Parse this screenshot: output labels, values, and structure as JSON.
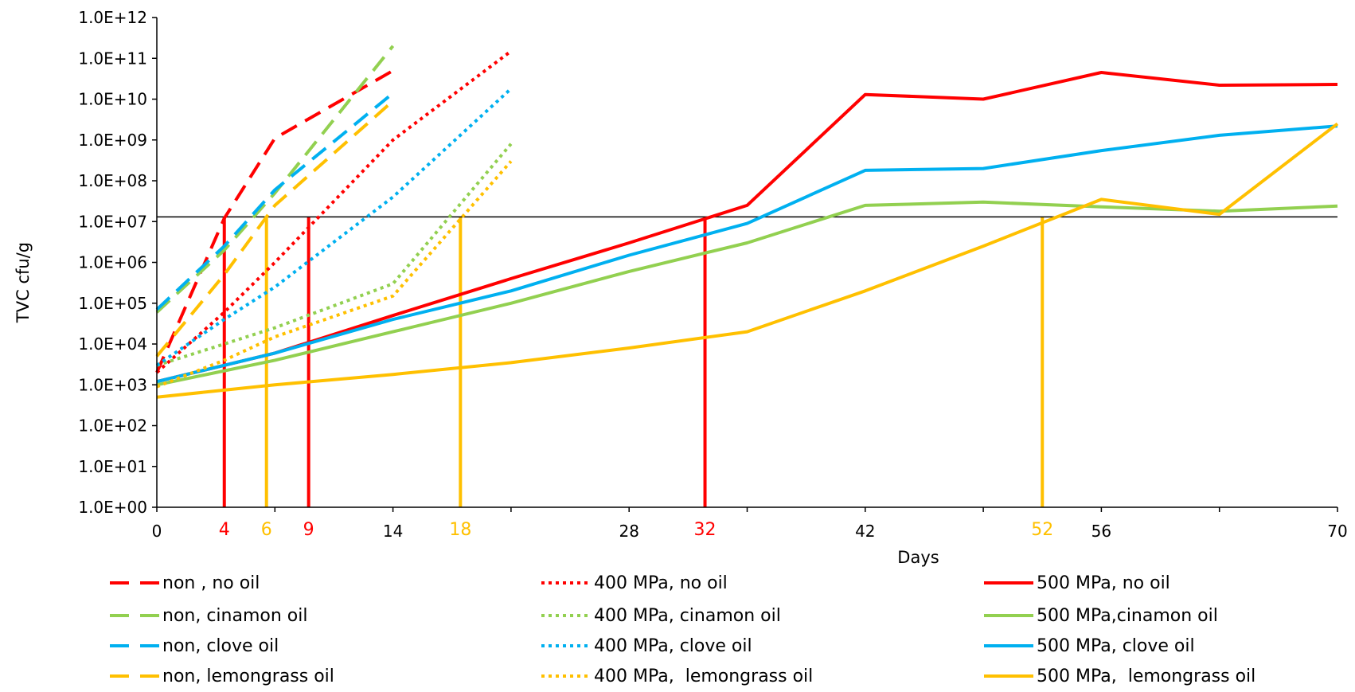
{
  "chart_data": {
    "type": "line",
    "title": "",
    "xlabel": "Days",
    "ylabel": "TVC  cfu/g",
    "y_scale": "log",
    "xlim": [
      0,
      70
    ],
    "ylim": [
      1,
      1000000000000
    ],
    "x_ticks": [
      0,
      14,
      28,
      42,
      56,
      70
    ],
    "y_ticks": [
      "1.0E+00",
      "1.0E+01",
      "1.0E+02",
      "1.0E+03",
      "1.0E+04",
      "1.0E+05",
      "1.0E+06",
      "1.0E+07",
      "1.0E+08",
      "1.0E+09",
      "1.0E+10",
      "1.0E+11",
      "1.0E+12"
    ],
    "y_tick_values": [
      1,
      10,
      100,
      1000,
      10000,
      100000,
      1000000,
      10000000,
      100000000,
      1000000000,
      10000000000,
      100000000000,
      1000000000000
    ],
    "grid": false,
    "legend_position": "bottom",
    "threshold": {
      "y": 13000000,
      "color": "#000000"
    },
    "markers": [
      {
        "x": 4,
        "label": "4",
        "color": "#ff0000"
      },
      {
        "x": 6.5,
        "label": "6",
        "color": "#ffc000"
      },
      {
        "x": 9,
        "label": "9",
        "color": "#ff0000"
      },
      {
        "x": 18,
        "label": "18",
        "color": "#ffc000"
      },
      {
        "x": 32.5,
        "label": "32",
        "color": "#ff0000"
      },
      {
        "x": 52.5,
        "label": "52",
        "color": "#ffc000"
      }
    ],
    "series": [
      {
        "name": "non , no oil",
        "color": "#ff0000",
        "style": "dashed",
        "x": [
          0,
          4,
          7,
          14
        ],
        "y": [
          2000,
          12000000,
          1100000000,
          50000000000
        ]
      },
      {
        "name": "400 MPa, no oil",
        "color": "#ff0000",
        "style": "dotted",
        "x": [
          0,
          4,
          7,
          14,
          21
        ],
        "y": [
          2000,
          60000,
          1000000,
          1000000000,
          150000000000
        ]
      },
      {
        "name": "500 MPa, no oil",
        "color": "#ff0000",
        "style": "solid",
        "x": [
          0,
          7,
          14,
          21,
          28,
          35,
          42,
          49,
          56,
          63,
          70
        ],
        "y": [
          1200,
          6000,
          50000,
          400000,
          3000000,
          25000000,
          13000000000,
          10000000000,
          45000000000,
          22000000000,
          23000000000
        ]
      },
      {
        "name": "non, cinamon oil",
        "color": "#92d050",
        "style": "dashed",
        "x": [
          0,
          4,
          7,
          14
        ],
        "y": [
          60000,
          2000000,
          50000000,
          200000000000
        ]
      },
      {
        "name": "400 MPa, cinamon oil",
        "color": "#92d050",
        "style": "dotted",
        "x": [
          0,
          4,
          7,
          14,
          21
        ],
        "y": [
          3000,
          10000,
          25000,
          300000,
          800000000
        ]
      },
      {
        "name": "500 MPa,cinamon oil",
        "color": "#92d050",
        "style": "solid",
        "x": [
          0,
          7,
          14,
          21,
          28,
          35,
          42,
          49,
          56,
          63,
          70
        ],
        "y": [
          1000,
          4000,
          20000,
          100000,
          600000,
          3000000,
          25000000,
          30000000,
          23000000,
          18000000,
          24000000
        ]
      },
      {
        "name": "non, clove oil",
        "color": "#00b0f0",
        "style": "dashed",
        "x": [
          0,
          4,
          7,
          14
        ],
        "y": [
          70000,
          2500000,
          60000000,
          14000000000
        ]
      },
      {
        "name": "400 MPa, clove oil",
        "color": "#00b0f0",
        "style": "dotted",
        "x": [
          0,
          4,
          7,
          14,
          21
        ],
        "y": [
          3000,
          40000,
          250000,
          40000000,
          18000000000
        ]
      },
      {
        "name": "500 MPa, clove oil",
        "color": "#00b0f0",
        "style": "solid",
        "x": [
          0,
          7,
          14,
          21,
          28,
          35,
          42,
          49,
          56,
          63,
          70
        ],
        "y": [
          1200,
          6000,
          40000,
          200000,
          1500000,
          9000000,
          180000000,
          200000000,
          550000000,
          1300000000,
          2200000000
        ]
      },
      {
        "name": "non, lemongrass oil",
        "color": "#ffc000",
        "style": "dashed",
        "x": [
          0,
          4,
          7,
          14
        ],
        "y": [
          5000,
          500000,
          25000000,
          9000000000
        ]
      },
      {
        "name": "400 MPa,  lemongrass oil",
        "color": "#ffc000",
        "style": "dotted",
        "x": [
          0,
          4,
          7,
          14,
          21
        ],
        "y": [
          900,
          4000,
          15000,
          150000,
          300000000
        ]
      },
      {
        "name": "500 MPa,  lemongrass oil",
        "color": "#ffc000",
        "style": "solid",
        "x": [
          0,
          7,
          14,
          21,
          28,
          35,
          42,
          49,
          56,
          63,
          70
        ],
        "y": [
          500,
          1000,
          1800,
          3500,
          8000,
          20000,
          200000,
          2500000,
          35000000,
          15000000,
          2500000000
        ]
      }
    ]
  }
}
